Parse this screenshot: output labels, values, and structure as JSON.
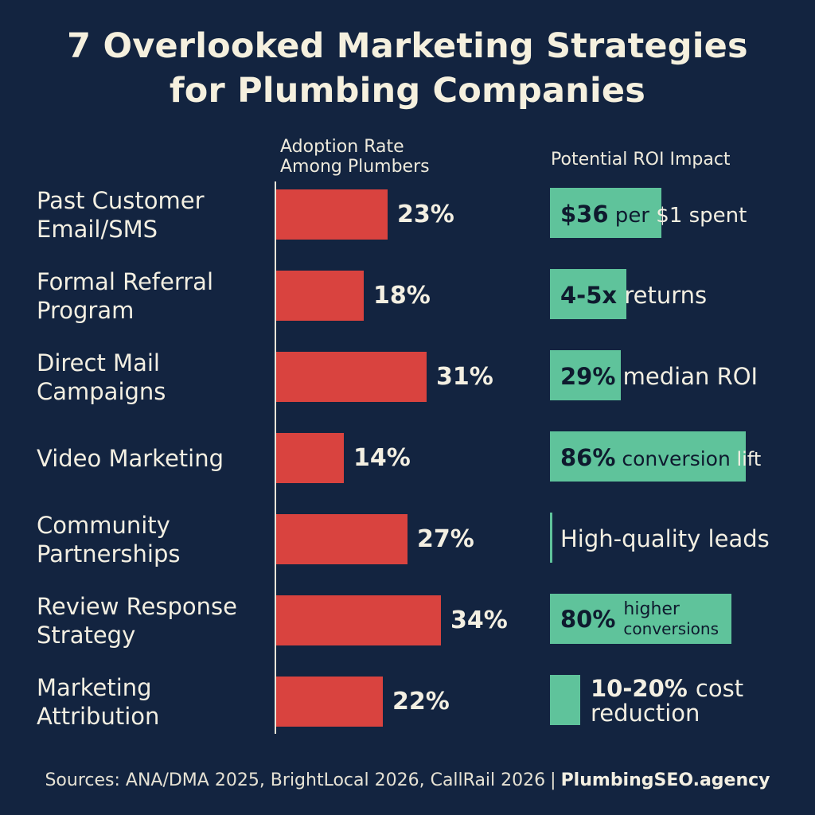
{
  "chart_data": {
    "type": "bar",
    "orientation": "horizontal",
    "title_lines": [
      "7 Overlooked Marketing Strategies",
      "for Plumbing Companies"
    ],
    "adoption_header": "Adoption Rate Among Plumbers",
    "roi_header": "Potential ROI Impact",
    "unit": "%",
    "xlim": [
      0,
      34
    ],
    "categories": [
      {
        "lines": [
          "Past Customer",
          "Email/SMS"
        ],
        "value": 23,
        "label": "23%"
      },
      {
        "lines": [
          "Formal Referral",
          "Program"
        ],
        "value": 18,
        "label": "18%"
      },
      {
        "lines": [
          "Direct Mail",
          "Campaigns"
        ],
        "value": 31,
        "label": "31%"
      },
      {
        "lines": [
          "Video Marketing"
        ],
        "value": 14,
        "label": "14%"
      },
      {
        "lines": [
          "Community",
          "Partnerships"
        ],
        "value": 27,
        "label": "27%"
      },
      {
        "lines": [
          "Review Response",
          "Strategy"
        ],
        "value": 34,
        "label": "34%"
      },
      {
        "lines": [
          "Marketing",
          "Attribution"
        ],
        "value": 22,
        "label": "22%"
      }
    ],
    "roi": [
      {
        "highlight": "$36",
        "mid": "per",
        "rest": "$1 spent"
      },
      {
        "highlight": "4-5x",
        "mid": "",
        "rest": "returns"
      },
      {
        "highlight": "29%",
        "mid": "",
        "rest": "median ROI"
      },
      {
        "highlight": "86%",
        "mid": "conversion",
        "rest": "lift"
      },
      {
        "highlight": "",
        "mid": "",
        "rest": "High-quality leads"
      },
      {
        "highlight": "80%",
        "mid": "higher conversions",
        "rest": ""
      },
      {
        "highlight": "10-20%",
        "mid": "",
        "rest": "cost reduction"
      }
    ],
    "accent_colors": {
      "bar": "#d9433f",
      "roi": "#5fc39b",
      "background": "#132440"
    }
  },
  "footer": {
    "sources": "Sources: ANA/DMA 2025, BrightLocal 2026, CallRail 2026",
    "separator": "|",
    "brand": "PlumbingSEO.agency"
  }
}
